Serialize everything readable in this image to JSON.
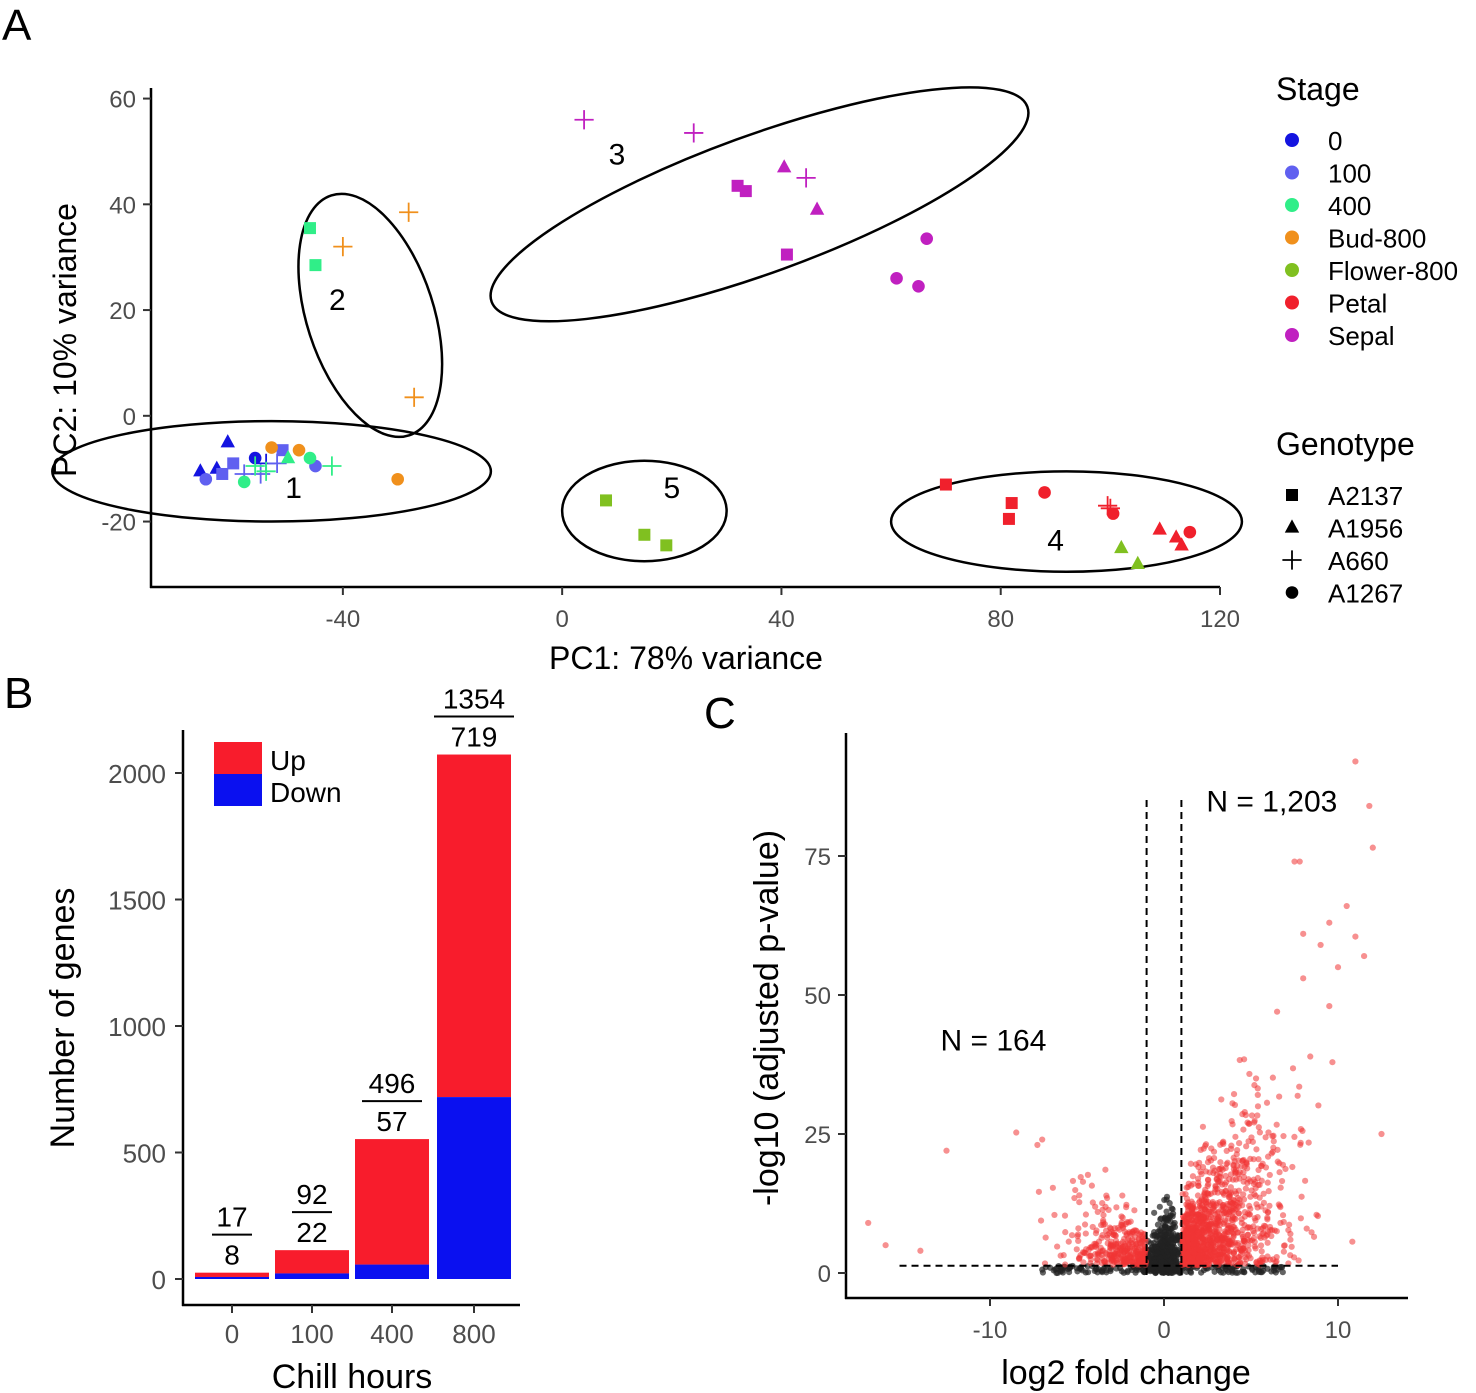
{
  "figure": {
    "panels": [
      "A",
      "B",
      "C"
    ]
  },
  "colors": {
    "stage_0": "#1414e0",
    "stage_100": "#6060f0",
    "stage_400": "#30ee88",
    "stage_bud800": "#f0901c",
    "stage_flower800": "#80c020",
    "stage_petal": "#f0202c",
    "stage_sepal": "#c020c0",
    "up": "#f81c2c",
    "down": "#0a10f0",
    "sig_point": "#f03434",
    "ns_point": "#222222"
  },
  "chart_data": [
    {
      "panel": "A",
      "type": "scatter",
      "xlabel": "PC1: 78% variance",
      "ylabel": "PC2: 10% variance",
      "xlim": [
        -75,
        120
      ],
      "ylim": [
        -32,
        62
      ],
      "xticks": [
        "-40",
        "0",
        "40",
        "80",
        "120"
      ],
      "xtick_values": [
        -40,
        0,
        40,
        80,
        120
      ],
      "yticks": [
        "60",
        "40",
        "20",
        "0",
        "-20"
      ],
      "ytick_values": [
        60,
        40,
        20,
        0,
        -20
      ],
      "legend_stage_title": "Stage",
      "legend_stage": [
        {
          "label": "0",
          "color": "stage_0"
        },
        {
          "label": "100",
          "color": "stage_100"
        },
        {
          "label": "400",
          "color": "stage_400"
        },
        {
          "label": "Bud-800",
          "color": "stage_bud800"
        },
        {
          "label": "Flower-800",
          "color": "stage_flower800"
        },
        {
          "label": "Petal",
          "color": "stage_petal"
        },
        {
          "label": "Sepal",
          "color": "stage_sepal"
        }
      ],
      "legend_genotype_title": "Genotype",
      "legend_genotype": [
        {
          "label": "A2137",
          "shape": "square"
        },
        {
          "label": "A1956",
          "shape": "triangle"
        },
        {
          "label": "A660",
          "shape": "plus"
        },
        {
          "label": "A1267",
          "shape": "circle"
        }
      ],
      "clusters": [
        {
          "label": "1",
          "cx": -53,
          "cy": -10.5,
          "rx": 40,
          "ry": 9.5,
          "angle": 0,
          "label_x": -49,
          "label_y": -15.5
        },
        {
          "label": "2",
          "cx": -35,
          "cy": 19,
          "rx": 23,
          "ry": 12,
          "angle": 72,
          "label_x": -41,
          "label_y": 20
        },
        {
          "label": "3",
          "cx": 36,
          "cy": 40,
          "rx": 52,
          "ry": 13,
          "angle": -20,
          "label_x": 10,
          "label_y": 47.5
        },
        {
          "label": "4",
          "cx": 92,
          "cy": -20,
          "rx": 32,
          "ry": 9.5,
          "angle": 0,
          "label_x": 90,
          "label_y": -25.5
        },
        {
          "label": "5",
          "cx": 15,
          "cy": -18,
          "rx": 15,
          "ry": 9.5,
          "angle": 0,
          "label_x": 20,
          "label_y": -15.5
        }
      ],
      "points": [
        {
          "x": -66,
          "y": -10.5,
          "stage": "stage_0",
          "shape": "triangle"
        },
        {
          "x": -63,
          "y": -10,
          "stage": "stage_0",
          "shape": "triangle"
        },
        {
          "x": -61,
          "y": -5,
          "stage": "stage_0",
          "shape": "triangle"
        },
        {
          "x": -56,
          "y": -8,
          "stage": "stage_0",
          "shape": "circle"
        },
        {
          "x": -54,
          "y": -9,
          "stage": "stage_0",
          "shape": "plus"
        },
        {
          "x": -65,
          "y": -12,
          "stage": "stage_100",
          "shape": "circle"
        },
        {
          "x": -62,
          "y": -11,
          "stage": "stage_100",
          "shape": "square"
        },
        {
          "x": -60,
          "y": -9,
          "stage": "stage_100",
          "shape": "square"
        },
        {
          "x": -58,
          "y": -11,
          "stage": "stage_100",
          "shape": "plus"
        },
        {
          "x": -55,
          "y": -11,
          "stage": "stage_100",
          "shape": "plus"
        },
        {
          "x": -52,
          "y": -9,
          "stage": "stage_100",
          "shape": "plus"
        },
        {
          "x": -51,
          "y": -6.5,
          "stage": "stage_100",
          "shape": "square"
        },
        {
          "x": -45,
          "y": -9.5,
          "stage": "stage_100",
          "shape": "circle"
        },
        {
          "x": -58,
          "y": -12.5,
          "stage": "stage_400",
          "shape": "circle"
        },
        {
          "x": -56,
          "y": -9.5,
          "stage": "stage_400",
          "shape": "plus"
        },
        {
          "x": -54,
          "y": -10.5,
          "stage": "stage_400",
          "shape": "plus"
        },
        {
          "x": -50,
          "y": -8,
          "stage": "stage_400",
          "shape": "triangle"
        },
        {
          "x": -46,
          "y": -8,
          "stage": "stage_400",
          "shape": "circle"
        },
        {
          "x": -42,
          "y": -9.5,
          "stage": "stage_400",
          "shape": "plus"
        },
        {
          "x": -46,
          "y": 35.5,
          "stage": "stage_400",
          "shape": "square"
        },
        {
          "x": -45,
          "y": 28.5,
          "stage": "stage_400",
          "shape": "square"
        },
        {
          "x": -53,
          "y": -6,
          "stage": "stage_bud800",
          "shape": "circle"
        },
        {
          "x": -48,
          "y": -6.5,
          "stage": "stage_bud800",
          "shape": "circle"
        },
        {
          "x": -30,
          "y": -12,
          "stage": "stage_bud800",
          "shape": "circle"
        },
        {
          "x": -40,
          "y": 32,
          "stage": "stage_bud800",
          "shape": "plus"
        },
        {
          "x": -28,
          "y": 38.5,
          "stage": "stage_bud800",
          "shape": "plus"
        },
        {
          "x": -27,
          "y": 3.5,
          "stage": "stage_bud800",
          "shape": "plus"
        },
        {
          "x": 8,
          "y": -16,
          "stage": "stage_flower800",
          "shape": "square"
        },
        {
          "x": 15,
          "y": -22.5,
          "stage": "stage_flower800",
          "shape": "square"
        },
        {
          "x": 19,
          "y": -24.5,
          "stage": "stage_flower800",
          "shape": "square"
        },
        {
          "x": 102,
          "y": -25,
          "stage": "stage_flower800",
          "shape": "triangle"
        },
        {
          "x": 105,
          "y": -28,
          "stage": "stage_flower800",
          "shape": "triangle"
        },
        {
          "x": 70,
          "y": -13,
          "stage": "stage_petal",
          "shape": "square"
        },
        {
          "x": 82,
          "y": -16.5,
          "stage": "stage_petal",
          "shape": "square"
        },
        {
          "x": 81.5,
          "y": -19.5,
          "stage": "stage_petal",
          "shape": "square"
        },
        {
          "x": 88,
          "y": -14.5,
          "stage": "stage_petal",
          "shape": "circle"
        },
        {
          "x": 99.5,
          "y": -17,
          "stage": "stage_petal",
          "shape": "plus"
        },
        {
          "x": 100,
          "y": -17.5,
          "stage": "stage_petal",
          "shape": "plus"
        },
        {
          "x": 100.5,
          "y": -18.5,
          "stage": "stage_petal",
          "shape": "circle"
        },
        {
          "x": 109,
          "y": -21.5,
          "stage": "stage_petal",
          "shape": "triangle"
        },
        {
          "x": 112,
          "y": -23,
          "stage": "stage_petal",
          "shape": "triangle"
        },
        {
          "x": 113,
          "y": -24.5,
          "stage": "stage_petal",
          "shape": "triangle"
        },
        {
          "x": 114.5,
          "y": -22,
          "stage": "stage_petal",
          "shape": "circle"
        },
        {
          "x": 4,
          "y": 56,
          "stage": "stage_sepal",
          "shape": "plus"
        },
        {
          "x": 24,
          "y": 53.5,
          "stage": "stage_sepal",
          "shape": "plus"
        },
        {
          "x": 40.5,
          "y": 47,
          "stage": "stage_sepal",
          "shape": "triangle"
        },
        {
          "x": 44.5,
          "y": 45,
          "stage": "stage_sepal",
          "shape": "plus"
        },
        {
          "x": 46.5,
          "y": 39,
          "stage": "stage_sepal",
          "shape": "triangle"
        },
        {
          "x": 32,
          "y": 43.5,
          "stage": "stage_sepal",
          "shape": "square"
        },
        {
          "x": 33.5,
          "y": 42.5,
          "stage": "stage_sepal",
          "shape": "square"
        },
        {
          "x": 41,
          "y": 30.5,
          "stage": "stage_sepal",
          "shape": "square"
        },
        {
          "x": 66.5,
          "y": 33.5,
          "stage": "stage_sepal",
          "shape": "circle"
        },
        {
          "x": 61,
          "y": 26,
          "stage": "stage_sepal",
          "shape": "circle"
        },
        {
          "x": 65,
          "y": 24.5,
          "stage": "stage_sepal",
          "shape": "circle"
        }
      ]
    },
    {
      "panel": "B",
      "type": "bar",
      "stacked": true,
      "xlabel": "Chill hours",
      "ylabel": "Number of genes",
      "categories": [
        "0",
        "100",
        "400",
        "800"
      ],
      "series": [
        {
          "name": "Down",
          "values": [
            8,
            22,
            57,
            719
          ],
          "color": "down"
        },
        {
          "name": "Up",
          "values": [
            17,
            92,
            496,
            1354
          ],
          "color": "up"
        }
      ],
      "bar_labels_up": [
        "17",
        "92",
        "496",
        "1354"
      ],
      "bar_labels_down": [
        "8",
        "22",
        "57",
        "719"
      ],
      "ylim": [
        -60,
        2180
      ],
      "yticks": [
        "2000",
        "1500",
        "1000",
        "500",
        "0"
      ],
      "ytick_values": [
        2000,
        1500,
        1000,
        500,
        0
      ],
      "legend": [
        "Up",
        "Down"
      ]
    },
    {
      "panel": "C",
      "type": "scatter",
      "subtype": "volcano",
      "xlabel": "log2 fold change",
      "ylabel": "-log10 (adjusted p-value)",
      "xlim": [
        -18.5,
        14
      ],
      "ylim": [
        -5,
        98
      ],
      "xticks": [
        "-10",
        "0",
        "10"
      ],
      "xtick_values": [
        -10,
        0,
        10
      ],
      "yticks": [
        "75",
        "50",
        "25",
        "0"
      ],
      "ytick_values": [
        75,
        50,
        25,
        0
      ],
      "fc_threshold": [
        -1,
        1
      ],
      "p_threshold": 1.3,
      "annotations": [
        {
          "text": "N = 164",
          "x": -9.8,
          "y": 40
        },
        {
          "text": "N = 1,203",
          "x": 6.2,
          "y": 83
        }
      ],
      "outliers": [
        {
          "x": 11,
          "y": 92
        },
        {
          "x": 11.8,
          "y": 84
        },
        {
          "x": 12,
          "y": 76.5
        },
        {
          "x": 7.5,
          "y": 74
        },
        {
          "x": 7.8,
          "y": 74
        },
        {
          "x": 10.5,
          "y": 66
        },
        {
          "x": 9.5,
          "y": 63
        },
        {
          "x": 11,
          "y": 60.5
        },
        {
          "x": 8,
          "y": 61
        },
        {
          "x": 9,
          "y": 59
        },
        {
          "x": 11.5,
          "y": 57
        },
        {
          "x": 10,
          "y": 55
        },
        {
          "x": 8,
          "y": 53
        },
        {
          "x": 9.5,
          "y": 48
        },
        {
          "x": 6.5,
          "y": 47
        },
        {
          "x": 12.5,
          "y": 25
        },
        {
          "x": -17,
          "y": 9
        },
        {
          "x": -16,
          "y": 5
        },
        {
          "x": -14,
          "y": 4
        },
        {
          "x": -7,
          "y": 24
        },
        {
          "x": -12.5,
          "y": 22
        }
      ]
    }
  ]
}
